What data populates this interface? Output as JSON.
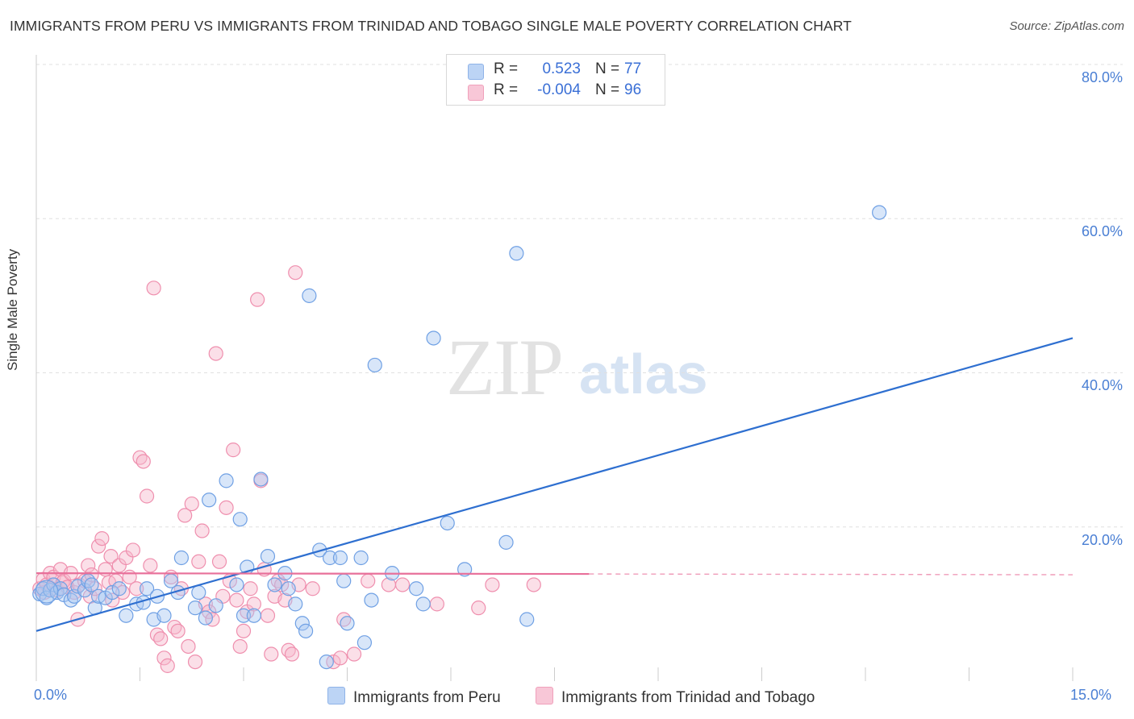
{
  "title": "IMMIGRANTS FROM PERU VS IMMIGRANTS FROM TRINIDAD AND TOBAGO SINGLE MALE POVERTY CORRELATION CHART",
  "source": "Source: ZipAtlas.com",
  "watermark": {
    "zip": "ZIP",
    "atlas": "atlas"
  },
  "colors": {
    "blue_fill": "#a9c8f2",
    "blue_stroke": "#6fa0e4",
    "blue_line": "#2e6fd0",
    "pink_fill": "#f6b8cc",
    "pink_stroke": "#ef8fae",
    "pink_line": "#e8709a",
    "grid": "#e0e0e0",
    "tick_text": "#4a7fd4"
  },
  "legend": {
    "rows": [
      {
        "r_label": "R =",
        "r_value": "0.523",
        "n_label": "N =",
        "n_value": "77"
      },
      {
        "r_label": "R =",
        "r_value": "-0.004",
        "n_label": "N =",
        "n_value": "96"
      }
    ]
  },
  "bottom_legend": [
    "Immigrants from Peru",
    "Immigrants from Trinidad and Tobago"
  ],
  "chart_data": {
    "type": "scatter",
    "xlabel": "",
    "ylabel": "Single Male Poverty",
    "xlim": [
      0,
      15
    ],
    "ylim": [
      0,
      80
    ],
    "x_tick_labels": [
      "0.0%",
      "15.0%"
    ],
    "y_ticks": [
      20,
      40,
      60,
      80
    ],
    "y_tick_labels": [
      "20.0%",
      "40.0%",
      "60.0%",
      "80.0%"
    ],
    "grid": true,
    "legend_position": "top-center",
    "series": [
      {
        "name": "Immigrants from Peru",
        "r": 0.523,
        "n": 77,
        "trend": {
          "x0": 0,
          "y0": 6.5,
          "x1": 15,
          "y1": 44.5
        },
        "points": [
          [
            0.05,
            11.3
          ],
          [
            0.1,
            12.0
          ],
          [
            0.15,
            10.8
          ],
          [
            0.2,
            11.8
          ],
          [
            0.25,
            12.5
          ],
          [
            0.3,
            11.5
          ],
          [
            0.35,
            12.0
          ],
          [
            0.4,
            11.2
          ],
          [
            0.5,
            10.5
          ],
          [
            0.55,
            11.0
          ],
          [
            0.6,
            12.3
          ],
          [
            0.7,
            11.8
          ],
          [
            0.75,
            13.0
          ],
          [
            0.8,
            12.5
          ],
          [
            0.85,
            9.5
          ],
          [
            0.9,
            11.0
          ],
          [
            1.0,
            10.8
          ],
          [
            1.1,
            11.5
          ],
          [
            1.2,
            12.0
          ],
          [
            1.3,
            8.5
          ],
          [
            1.45,
            10.0
          ],
          [
            1.55,
            10.2
          ],
          [
            1.6,
            12.0
          ],
          [
            1.7,
            8.0
          ],
          [
            1.75,
            11.0
          ],
          [
            1.85,
            8.5
          ],
          [
            1.95,
            13.0
          ],
          [
            2.05,
            11.5
          ],
          [
            2.1,
            16.0
          ],
          [
            2.3,
            9.5
          ],
          [
            2.35,
            11.5
          ],
          [
            2.45,
            8.2
          ],
          [
            2.5,
            23.5
          ],
          [
            2.6,
            9.8
          ],
          [
            2.75,
            26.0
          ],
          [
            2.9,
            12.5
          ],
          [
            2.95,
            21.0
          ],
          [
            3.0,
            8.5
          ],
          [
            3.05,
            14.8
          ],
          [
            3.15,
            8.5
          ],
          [
            3.25,
            26.2
          ],
          [
            3.35,
            16.2
          ],
          [
            3.45,
            12.5
          ],
          [
            3.6,
            14.0
          ],
          [
            3.65,
            12.0
          ],
          [
            3.75,
            10.0
          ],
          [
            3.85,
            7.5
          ],
          [
            3.9,
            6.5
          ],
          [
            3.95,
            50.0
          ],
          [
            4.1,
            17.0
          ],
          [
            4.2,
            2.5
          ],
          [
            4.25,
            16.0
          ],
          [
            4.4,
            16.0
          ],
          [
            4.45,
            13.0
          ],
          [
            4.5,
            7.5
          ],
          [
            4.7,
            16.0
          ],
          [
            4.75,
            5.0
          ],
          [
            4.85,
            10.5
          ],
          [
            4.9,
            41.0
          ],
          [
            5.15,
            14.0
          ],
          [
            5.5,
            12.0
          ],
          [
            5.6,
            10.0
          ],
          [
            5.75,
            44.5
          ],
          [
            5.95,
            20.5
          ],
          [
            6.2,
            14.5
          ],
          [
            6.8,
            18.0
          ],
          [
            6.95,
            55.5
          ],
          [
            7.1,
            8.0
          ],
          [
            12.2,
            60.8
          ]
        ]
      },
      {
        "name": "Immigrants from Trinidad and Tobago",
        "r": -0.004,
        "n": 96,
        "trend": {
          "x0": 0,
          "y0": 14.0,
          "x1": 8.0,
          "y1": 13.9,
          "dash_to_x": 15,
          "dash_to_y": 13.8
        },
        "points": [
          [
            0.05,
            12.0
          ],
          [
            0.1,
            13.2
          ],
          [
            0.12,
            11.5
          ],
          [
            0.15,
            12.5
          ],
          [
            0.2,
            14.0
          ],
          [
            0.22,
            12.0
          ],
          [
            0.25,
            13.5
          ],
          [
            0.3,
            11.8
          ],
          [
            0.35,
            14.5
          ],
          [
            0.38,
            12.8
          ],
          [
            0.4,
            13.0
          ],
          [
            0.45,
            12.2
          ],
          [
            0.5,
            14.0
          ],
          [
            0.55,
            11.5
          ],
          [
            0.6,
            8.0
          ],
          [
            0.62,
            12.5
          ],
          [
            0.7,
            13.0
          ],
          [
            0.75,
            15.0
          ],
          [
            0.78,
            11.0
          ],
          [
            0.8,
            13.8
          ],
          [
            0.85,
            12.0
          ],
          [
            0.9,
            17.5
          ],
          [
            0.95,
            18.5
          ],
          [
            1.0,
            14.5
          ],
          [
            1.05,
            12.8
          ],
          [
            1.08,
            16.2
          ],
          [
            1.1,
            10.5
          ],
          [
            1.15,
            13.0
          ],
          [
            1.2,
            15.0
          ],
          [
            1.25,
            11.5
          ],
          [
            1.3,
            16.0
          ],
          [
            1.35,
            13.5
          ],
          [
            1.4,
            17.0
          ],
          [
            1.45,
            12.0
          ],
          [
            1.5,
            29.0
          ],
          [
            1.55,
            28.5
          ],
          [
            1.6,
            24.0
          ],
          [
            1.65,
            15.0
          ],
          [
            1.7,
            51.0
          ],
          [
            1.75,
            6.0
          ],
          [
            1.8,
            5.5
          ],
          [
            1.85,
            3.0
          ],
          [
            1.9,
            2.0
          ],
          [
            1.95,
            13.5
          ],
          [
            2.0,
            7.0
          ],
          [
            2.05,
            6.5
          ],
          [
            2.1,
            12.0
          ],
          [
            2.15,
            21.5
          ],
          [
            2.2,
            4.5
          ],
          [
            2.25,
            23.0
          ],
          [
            2.3,
            2.5
          ],
          [
            2.35,
            15.5
          ],
          [
            2.4,
            19.5
          ],
          [
            2.45,
            10.0
          ],
          [
            2.5,
            9.0
          ],
          [
            2.55,
            8.0
          ],
          [
            2.6,
            42.5
          ],
          [
            2.65,
            15.5
          ],
          [
            2.7,
            11.0
          ],
          [
            2.75,
            22.5
          ],
          [
            2.8,
            13.0
          ],
          [
            2.85,
            30.0
          ],
          [
            2.9,
            10.5
          ],
          [
            2.95,
            4.5
          ],
          [
            3.0,
            6.5
          ],
          [
            3.05,
            9.0
          ],
          [
            3.1,
            12.0
          ],
          [
            3.15,
            10.0
          ],
          [
            3.2,
            49.5
          ],
          [
            3.25,
            26.0
          ],
          [
            3.3,
            14.5
          ],
          [
            3.35,
            8.5
          ],
          [
            3.4,
            3.5
          ],
          [
            3.45,
            11.0
          ],
          [
            3.5,
            13.0
          ],
          [
            3.55,
            12.5
          ],
          [
            3.6,
            10.5
          ],
          [
            3.65,
            4.0
          ],
          [
            3.7,
            3.5
          ],
          [
            3.75,
            53.0
          ],
          [
            3.8,
            12.5
          ],
          [
            4.0,
            12.0
          ],
          [
            4.3,
            2.5
          ],
          [
            4.4,
            3.0
          ],
          [
            4.45,
            8.0
          ],
          [
            4.6,
            3.5
          ],
          [
            4.8,
            13.0
          ],
          [
            5.1,
            12.5
          ],
          [
            5.3,
            12.5
          ],
          [
            5.8,
            10.0
          ],
          [
            6.4,
            9.5
          ],
          [
            6.6,
            12.5
          ],
          [
            7.2,
            12.5
          ]
        ]
      }
    ]
  }
}
